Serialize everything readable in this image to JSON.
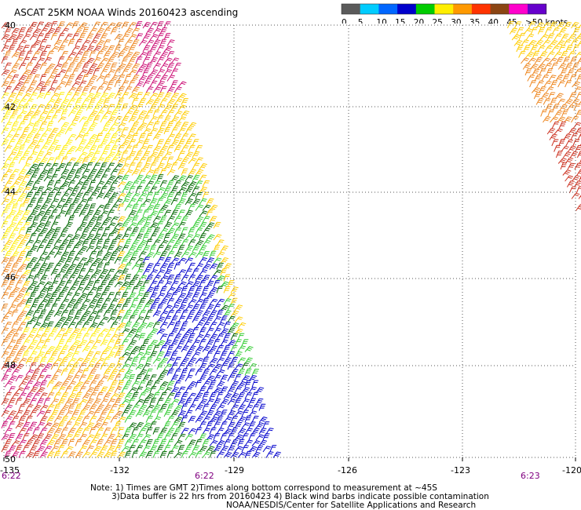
{
  "title": "ASCAT 25KM NOAA Winds 20160423 ascending",
  "legend": {
    "labels": [
      "0",
      "5",
      "10",
      "15",
      "20",
      "25",
      "30",
      "35",
      "40",
      "45",
      ">50 knots"
    ],
    "colors": [
      "#5a5a5a",
      "#00ccff",
      "#0066ff",
      "#0000cc",
      "#00cc00",
      "#ffee00",
      "#ff9900",
      "#ff3300",
      "#8b4513",
      "#ff00cc",
      "#6600cc"
    ]
  },
  "map": {
    "lat_labels": [
      "40",
      "42",
      "44",
      "46",
      "48",
      "50"
    ],
    "lon_labels": [
      "-135",
      "-132",
      "-129",
      "-126",
      "-123",
      "-120"
    ],
    "time_labels": [
      "6:22",
      "6:22",
      "6:23"
    ],
    "time_color": "#800080",
    "grid_style": "dotted",
    "barb_color_key": {
      "red": "#cc3322",
      "orange": "#ee8822",
      "gold": "#ffcc00",
      "yellow": "#ffee11",
      "green": "#33cc33",
      "darkgreen": "#006600",
      "blue": "#0000cc",
      "magenta": "#cc1177"
    }
  },
  "notes": {
    "line1": "Note: 1) Times are GMT 2)Times along bottom correspond to measurement at ~45S",
    "line2": "3)Data buffer is 22 hrs from 20160423 4) Black wind barbs indicate possible contamination",
    "line3": "NOAA/NESDIS/Center for Satellite Applications and Research"
  }
}
